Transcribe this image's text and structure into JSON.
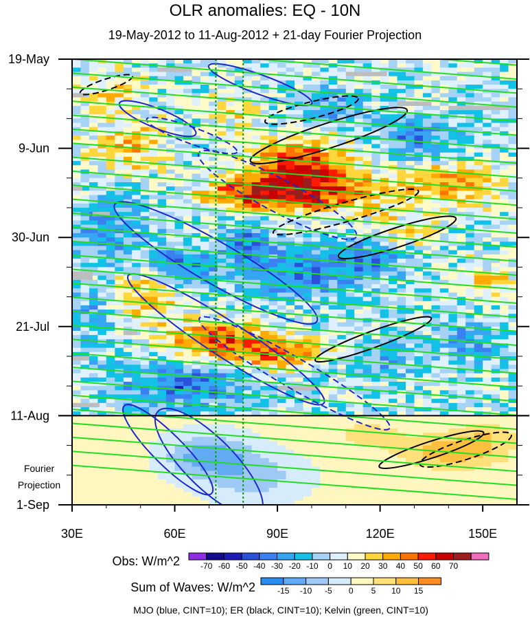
{
  "chart_data": {
    "type": "heatmap",
    "title": "OLR anomalies: EQ - 10N",
    "subtitle": "19-May-2012 to 11-Aug-2012 + 21-day Fourier Projection",
    "x_range_lon": [
      30,
      160
    ],
    "x_ticks": [
      {
        "lon": 30,
        "label": "30E"
      },
      {
        "lon": 60,
        "label": "60E"
      },
      {
        "lon": 90,
        "label": "90E"
      },
      {
        "lon": 120,
        "label": "120E"
      },
      {
        "lon": 150,
        "label": "150E"
      }
    ],
    "y_range_days": [
      0,
      105
    ],
    "y_ticks": [
      {
        "day": 0,
        "label": "19-May"
      },
      {
        "day": 21,
        "label": "9-Jun"
      },
      {
        "day": 42,
        "label": "30-Jun"
      },
      {
        "day": 63,
        "label": "21-Jul"
      },
      {
        "day": 84,
        "label": "11-Aug"
      },
      {
        "day": 105,
        "label": "1-Sep"
      }
    ],
    "projection_label": [
      "Fourier",
      "Projection"
    ],
    "observation_end_day": 84,
    "reference_longitudes": [
      72,
      80
    ],
    "obs_colorbar": {
      "title": "Obs: W/m^2",
      "levels": [
        "-70",
        "-60",
        "-50",
        "-40",
        "-30",
        "-20",
        "-10",
        "0",
        "10",
        "20",
        "30",
        "40",
        "50",
        "60",
        "70"
      ],
      "colors": [
        "#8e2de2",
        "#140a8c",
        "#1c1cb4",
        "#2a52d8",
        "#3b80f0",
        "#37a6f2",
        "#13c0e6",
        "#a6d2f5",
        "#dff0ff",
        "#fffac8",
        "#ffd73c",
        "#ffaa00",
        "#ff7300",
        "#ff1a00",
        "#c80000",
        "#9b1e1e",
        "#f06ebe"
      ]
    },
    "waves_colorbar": {
      "title": "Sum of Waves: W/m^2",
      "levels": [
        "-15",
        "-10",
        "-5",
        "0",
        "5",
        "10",
        "15"
      ],
      "colors": [
        "#2a8cf0",
        "#62aaf2",
        "#9ec9f5",
        "#d6ecfb",
        "#fff6c0",
        "#ffe07a",
        "#ffc040",
        "#ff8c20"
      ]
    },
    "contours": {
      "MJO": {
        "color": "#1e28c8",
        "cint": 10
      },
      "ER": {
        "color": "#000000",
        "cint": 10
      },
      "Kelvin": {
        "color": "#22dd22",
        "cint": 10
      }
    },
    "footer": "MJO (blue, CINT=10); ER (black, CINT=10); Kelvin (green, CINT=10)"
  }
}
